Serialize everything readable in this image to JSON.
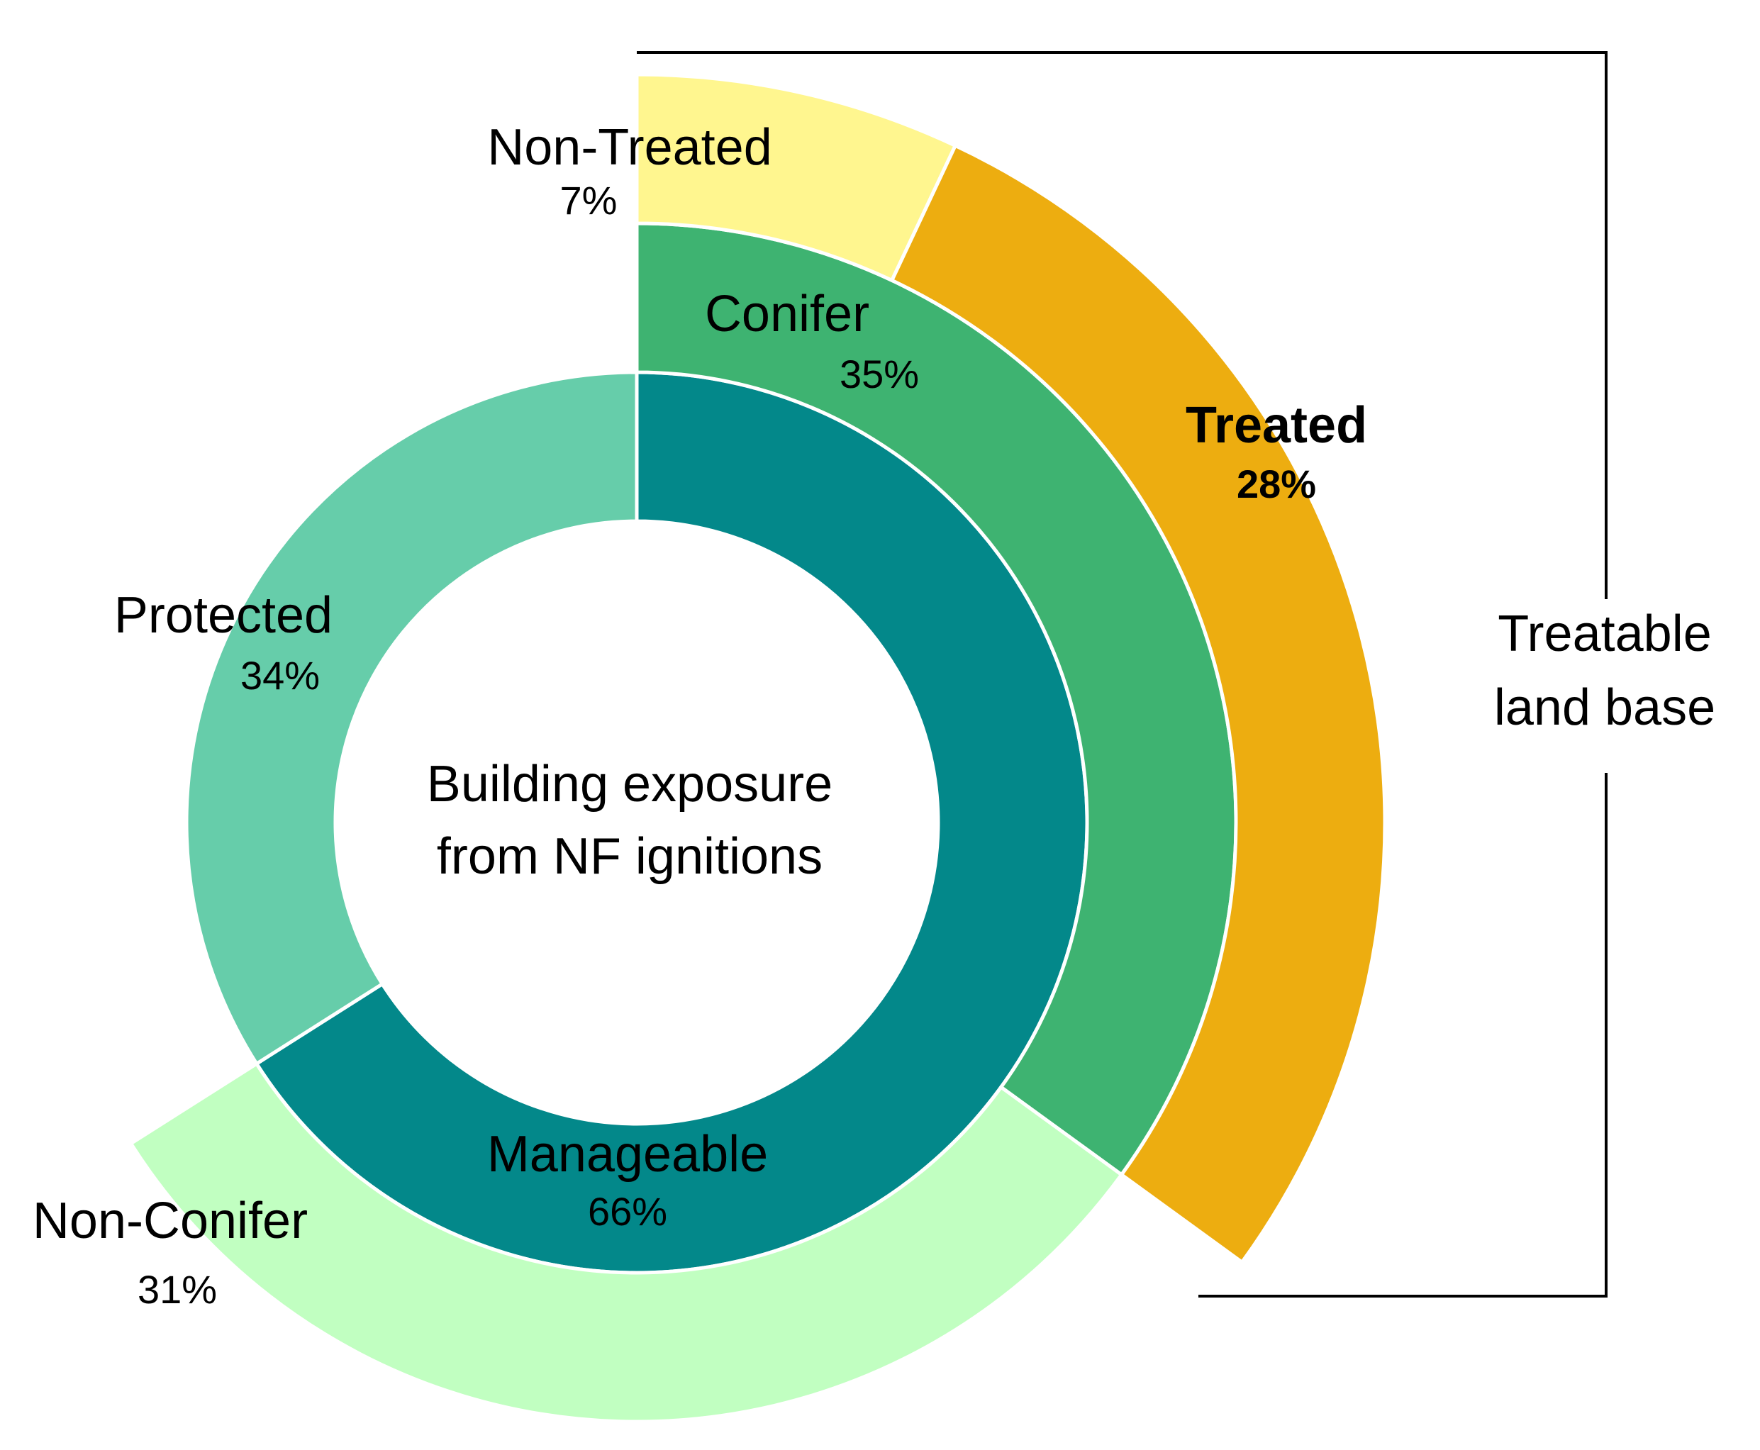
{
  "chart_data": {
    "type": "pie",
    "center_label": [
      "Building exposure",
      "from NF ignitions"
    ],
    "rings": [
      {
        "ring": "inner",
        "slices": [
          {
            "label": "Manageable",
            "value": 66,
            "pct_label": "66%",
            "color": "#03888A",
            "bold": false
          },
          {
            "label": "Protected",
            "value": 34,
            "pct_label": "34%",
            "color": "#66CDAA",
            "bold": false
          }
        ]
      },
      {
        "ring": "middle",
        "slices": [
          {
            "label": "Conifer",
            "value": 35,
            "pct_label": "35%",
            "color": "#3EB371",
            "bold": false
          },
          {
            "label": "Non-Conifer",
            "value": 31,
            "pct_label": "31%",
            "color": "#C1FFC1",
            "bold": false
          }
        ]
      },
      {
        "ring": "outer",
        "slices": [
          {
            "label": "Non-Treated",
            "value": 7,
            "pct_label": "7%",
            "color": "#FFF68F",
            "bold": false
          },
          {
            "label": "Treated",
            "value": 28,
            "pct_label": "28%",
            "color": "#EDAD10",
            "bold": true
          }
        ]
      }
    ],
    "bracket_label": [
      "Treatable",
      "land base"
    ],
    "start_angle": "12 o'clock",
    "direction": "clockwise"
  }
}
